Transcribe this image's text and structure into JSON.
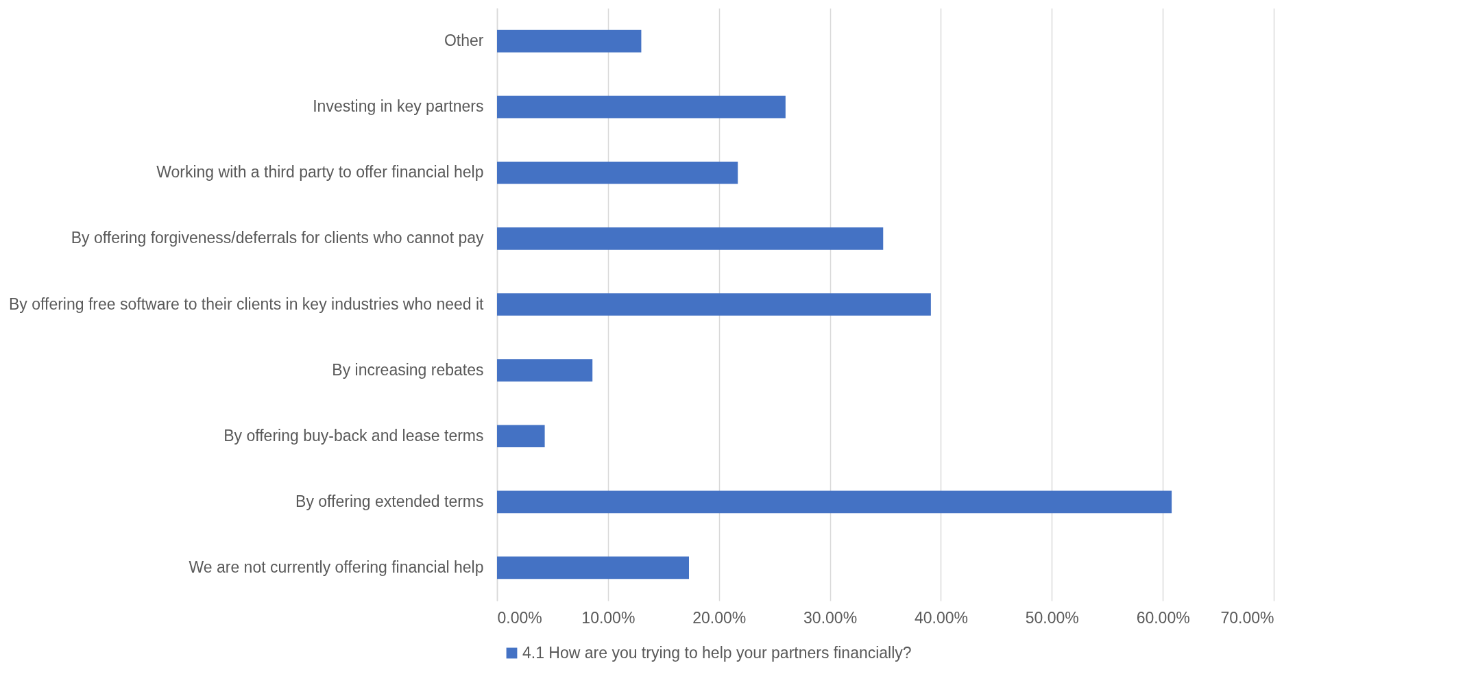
{
  "chart_data": {
    "type": "bar",
    "orientation": "horizontal",
    "categories": [
      "Other",
      "Investing in key partners",
      "Working with a third party to offer financial help",
      "By offering forgiveness/deferrals for clients who cannot pay",
      "By offering free software to their clients in key industries who need it",
      "By increasing rebates",
      "By offering buy-back and lease terms",
      "By offering extended terms",
      "We are not currently offering financial help"
    ],
    "series": [
      {
        "name": "4.1 How are you trying to help your partners financially?",
        "color": "#4472c4",
        "values": [
          13.0,
          26.0,
          21.7,
          34.8,
          39.1,
          8.6,
          4.3,
          60.8,
          17.3
        ]
      }
    ],
    "xlim": [
      0,
      70
    ],
    "xticks": [
      {
        "value": 0,
        "label": "0.00%"
      },
      {
        "value": 10,
        "label": "10.00%"
      },
      {
        "value": 20,
        "label": "20.00%"
      },
      {
        "value": 30,
        "label": "30.00%"
      },
      {
        "value": 40,
        "label": "40.00%"
      },
      {
        "value": 50,
        "label": "50.00%"
      },
      {
        "value": 60,
        "label": "60.00%"
      },
      {
        "value": 70,
        "label": "70.00%"
      }
    ],
    "grid": "x",
    "legend": "bottom"
  }
}
